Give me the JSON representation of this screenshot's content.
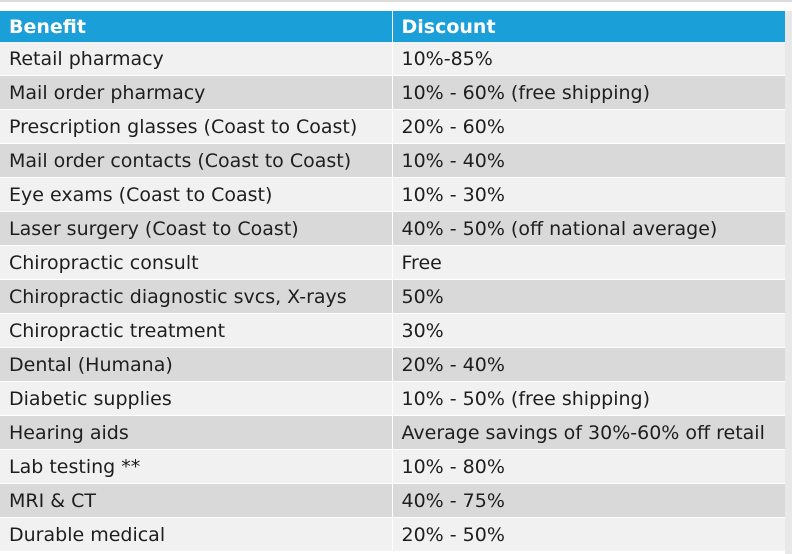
{
  "table": {
    "headers": [
      "Benefit",
      "Discount"
    ],
    "rows": [
      [
        "Retail pharmacy",
        "10%-85%"
      ],
      [
        "Mail order pharmacy",
        "10% - 60% (free shipping)"
      ],
      [
        "Prescription glasses (Coast to Coast)",
        "20% - 60%"
      ],
      [
        "Mail order contacts (Coast to Coast)",
        "10% - 40%"
      ],
      [
        "Eye exams (Coast to Coast)",
        "10% - 30%"
      ],
      [
        "Laser surgery (Coast to Coast)",
        "40% - 50% (off national average)"
      ],
      [
        "Chiropractic consult",
        "Free"
      ],
      [
        "Chiropractic diagnostic svcs, X-rays",
        "50%"
      ],
      [
        "Chiropractic treatment",
        "30%"
      ],
      [
        "Dental (Humana)",
        "20% - 40%"
      ],
      [
        "Diabetic supplies",
        "10% - 50% (free shipping)"
      ],
      [
        "Hearing aids",
        "Average savings of 30%-60% off retail"
      ],
      [
        "Lab testing **",
        "10% - 80%"
      ],
      [
        "MRI & CT",
        "40% - 75%"
      ],
      [
        "Durable medical",
        "20% - 50%"
      ]
    ]
  },
  "colors": {
    "header_bg": "#1a9fd9",
    "row_light": "#f1f1f1",
    "row_dark": "#d9d9d9"
  }
}
